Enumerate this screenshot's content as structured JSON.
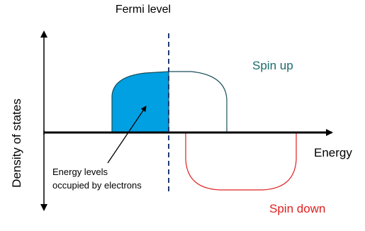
{
  "fermi_level": "Fermi level",
  "spin_up": "Spin up",
  "spin_down": "Spin down",
  "x_axis_label": "Energy",
  "y_axis_label": "Density of states",
  "annotation": {
    "line1": "Energy levels",
    "line2": "occupied by electrons"
  }
}
